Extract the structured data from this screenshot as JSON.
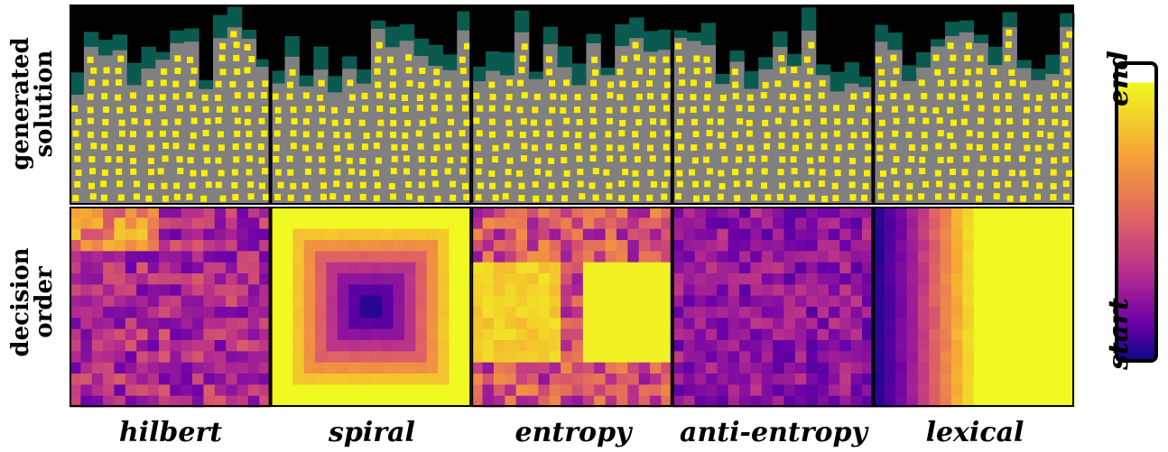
{
  "row_labels": {
    "top": [
      "generated",
      "solution"
    ],
    "bottom": [
      "decision",
      "order"
    ]
  },
  "columns": [
    "hilbert",
    "spiral",
    "entropy",
    "anti-entropy",
    "lexical"
  ],
  "colorbar": {
    "end_label": "end",
    "start_label": "start",
    "colormap": "plasma"
  },
  "colors": {
    "background_empty": "#000000",
    "packing_gray": "#808080",
    "rejected_teal": "#0b5a50",
    "item_yellow": "#ffee00"
  }
}
